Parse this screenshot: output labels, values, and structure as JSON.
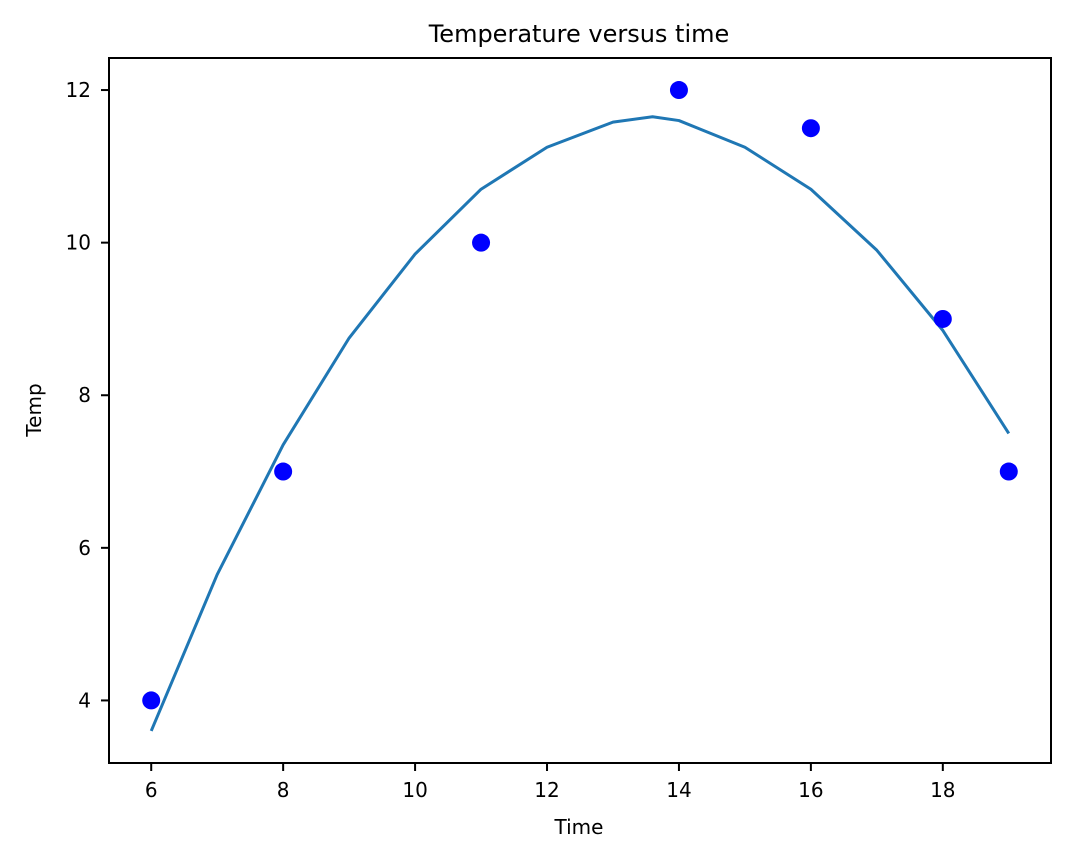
{
  "chart_data": {
    "type": "scatter",
    "title": "Temperature versus time",
    "xlabel": "Time",
    "ylabel": "Temp",
    "xlim": [
      5.36,
      19.64
    ],
    "ylim": [
      3.18,
      12.42
    ],
    "xticks": [
      6,
      8,
      10,
      12,
      14,
      16,
      18
    ],
    "yticks": [
      4,
      6,
      8,
      10,
      12
    ],
    "grid": false,
    "legend": "none",
    "series": [
      {
        "type": "scatter",
        "color": "#0000ff",
        "x": [
          6,
          8,
          11,
          14,
          16,
          18,
          19
        ],
        "y": [
          4,
          7,
          10,
          12,
          11.5,
          9,
          7
        ]
      },
      {
        "type": "line",
        "color": "#1f77b4",
        "x": [
          6.0,
          7.0,
          8.0,
          9.0,
          10.0,
          11.0,
          12.0,
          13.0,
          13.6,
          14.0,
          15.0,
          16.0,
          17.0,
          18.0,
          19.0
        ],
        "y": [
          3.6,
          5.65,
          7.35,
          8.75,
          9.85,
          10.7,
          11.25,
          11.58,
          11.65,
          11.6,
          11.25,
          10.7,
          9.9,
          8.85,
          7.5
        ]
      }
    ]
  }
}
